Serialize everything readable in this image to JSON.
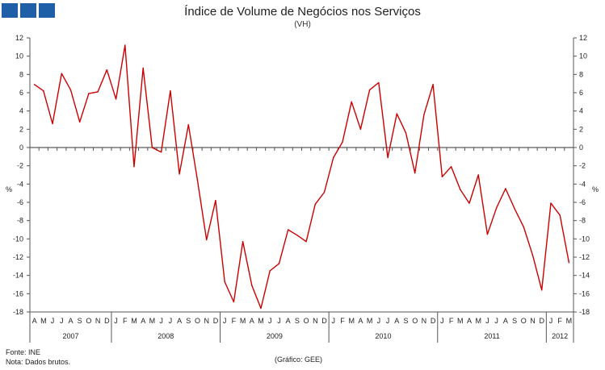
{
  "logo": {
    "icon": "ine-logo-icon",
    "color": "#1f5fa8"
  },
  "header": {
    "title": "Índice de Volume de Negócios nos Serviços",
    "subtitle": "(VH)"
  },
  "footer": {
    "source": "Fonte: INE",
    "note": "Nota: Dados brutos.",
    "credit": "(Gráfico: GEE)"
  },
  "chart_data": {
    "type": "line",
    "ylabel_left": "%",
    "ylabel_right": "%",
    "ylim": [
      -18,
      12
    ],
    "yticks": [
      12,
      10,
      8,
      6,
      4,
      2,
      0,
      -2,
      -4,
      -6,
      -8,
      -10,
      -12,
      -14,
      -16,
      -18
    ],
    "grid": false,
    "legend": "none",
    "line_color": "#cc0000",
    "month_labels": [
      "A",
      "M",
      "J",
      "J",
      "A",
      "S",
      "O",
      "N",
      "D",
      "J",
      "F",
      "M",
      "A",
      "M",
      "J",
      "J",
      "A",
      "S",
      "O",
      "N",
      "D",
      "J",
      "F",
      "M",
      "A",
      "M",
      "J",
      "J",
      "A",
      "S",
      "O",
      "N",
      "D",
      "J",
      "F",
      "M",
      "A",
      "M",
      "J",
      "J",
      "A",
      "S",
      "O",
      "N",
      "D",
      "J",
      "F",
      "M",
      "A",
      "M",
      "J",
      "J",
      "A",
      "S",
      "O",
      "N",
      "D",
      "J",
      "F",
      "M"
    ],
    "years": [
      {
        "label": "2007",
        "start": 0,
        "count": 9
      },
      {
        "label": "2008",
        "start": 9,
        "count": 12
      },
      {
        "label": "2009",
        "start": 21,
        "count": 12
      },
      {
        "label": "2010",
        "start": 33,
        "count": 12
      },
      {
        "label": "2011",
        "start": 45,
        "count": 12
      },
      {
        "label": "2012",
        "start": 57,
        "count": 3
      }
    ],
    "series": [
      {
        "values": [
          6.9,
          6.2,
          2.6,
          8.1,
          6.3,
          2.8,
          5.9,
          6.1,
          8.5,
          5.3,
          11.2,
          -2.1,
          8.7,
          0.0,
          -0.5,
          6.2,
          -2.9,
          2.5,
          -3.6,
          -10.1,
          -5.8,
          -14.7,
          -16.9,
          -10.3,
          -15.1,
          -17.6,
          -13.5,
          -12.7,
          -9.0,
          -9.6,
          -10.3,
          -6.2,
          -4.9,
          -1.1,
          0.6,
          5.0,
          2.0,
          6.3,
          7.1,
          -1.1,
          3.7,
          1.6,
          -2.8,
          3.6,
          6.9,
          -3.2,
          -2.1,
          -4.6,
          -6.1,
          -3.0,
          -9.5,
          -6.6,
          -4.5,
          -6.7,
          -8.7,
          -11.8,
          -15.6,
          -6.1,
          -7.4,
          -12.6
        ]
      }
    ]
  }
}
